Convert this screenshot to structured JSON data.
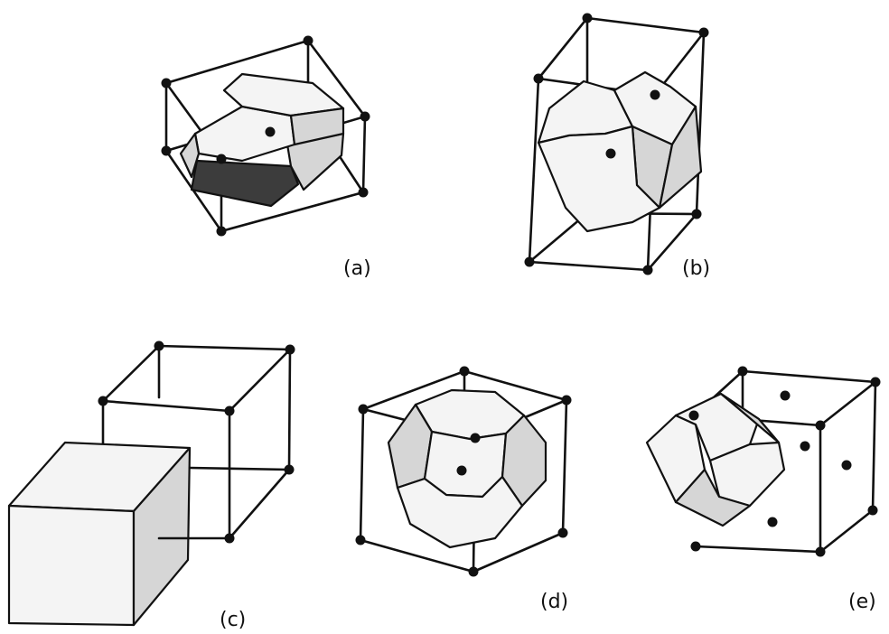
{
  "figure": {
    "panels": [
      {
        "id": "a",
        "label": "(a)"
      },
      {
        "id": "b",
        "label": "(b)"
      },
      {
        "id": "c",
        "label": "(c)"
      },
      {
        "id": "d",
        "label": "(d)"
      },
      {
        "id": "e",
        "label": "(e)"
      }
    ]
  }
}
